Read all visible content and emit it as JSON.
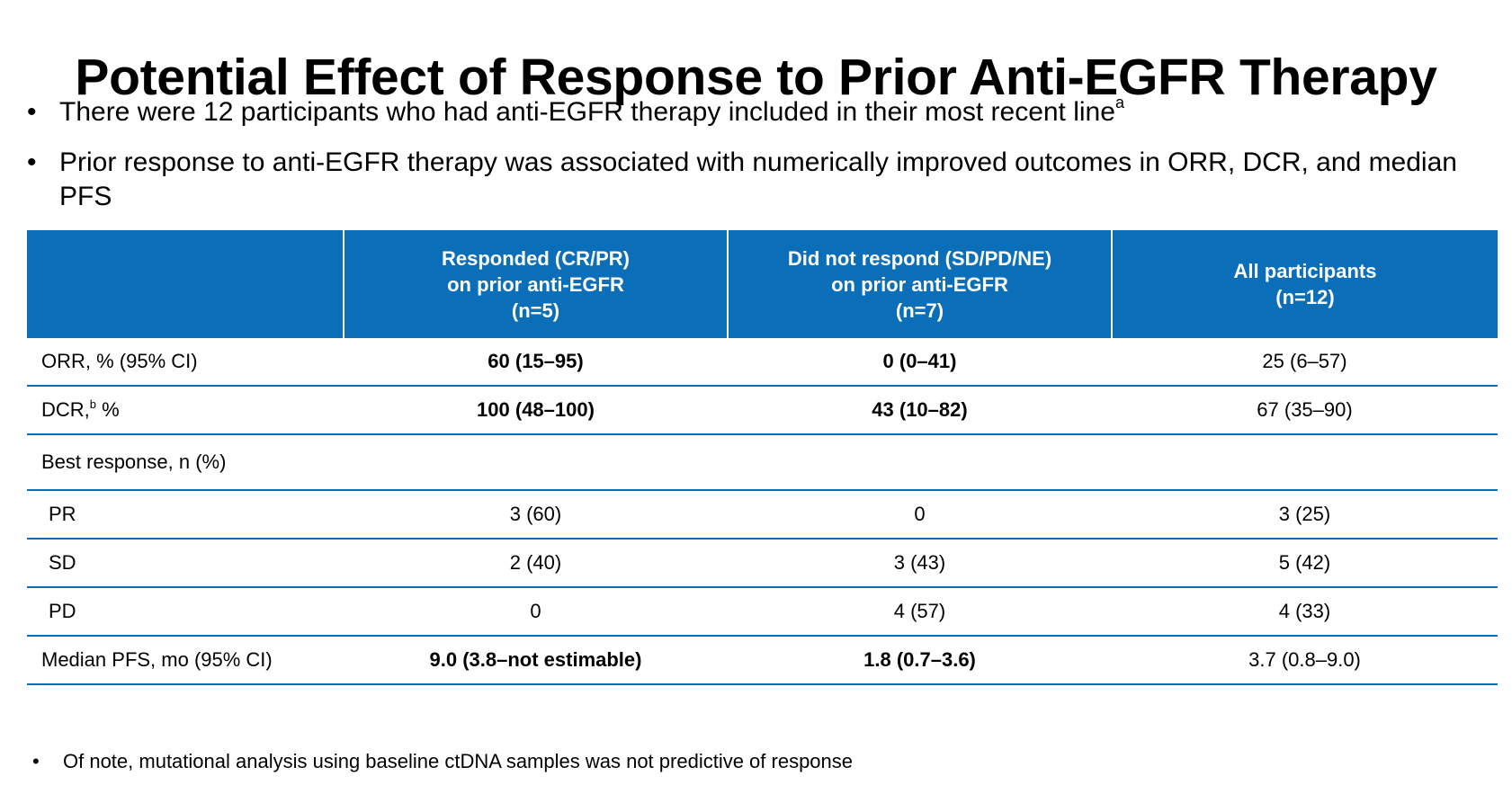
{
  "title": "Potential Effect of Response to Prior Anti-EGFR Therapy",
  "bullets": [
    {
      "text": "There were 12 participants who had anti-EGFR therapy included in their most recent line",
      "superscript": "a"
    },
    {
      "text": "Prior response to anti-EGFR therapy was associated with numerically improved outcomes in ORR, DCR, and median PFS"
    }
  ],
  "table": {
    "headers": [
      {
        "lines": [
          "",
          "",
          ""
        ]
      },
      {
        "lines": [
          "Responded (CR/PR)",
          "on prior anti-EGFR",
          "(n=5)"
        ]
      },
      {
        "lines": [
          "Did not respond (SD/PD/NE)",
          "on prior anti-EGFR",
          "(n=7)"
        ]
      },
      {
        "lines": [
          "All participants",
          "(n=12)",
          ""
        ]
      }
    ],
    "rows": [
      {
        "label": "ORR, % (95% CI)",
        "label_sup": "",
        "label_suffix": "",
        "cells": [
          "60 (15–95)",
          "0 (0–41)",
          "25 (6–57)"
        ],
        "bold": [
          true,
          true,
          false
        ]
      },
      {
        "label": "DCR,",
        "label_sup": "b",
        "label_suffix": " %",
        "cells": [
          "100 (48–100)",
          "43 (10–82)",
          "67 (35–90)"
        ],
        "bold": [
          true,
          true,
          false
        ]
      },
      {
        "label": "Best response, n (%)",
        "label_sup": "",
        "label_suffix": "",
        "cells": [
          "",
          "",
          ""
        ],
        "bold": [
          false,
          false,
          false
        ]
      },
      {
        "label": "PR",
        "label_sup": "",
        "label_suffix": "",
        "cells": [
          "3 (60)",
          "0",
          "3 (25)"
        ],
        "bold": [
          false,
          false,
          false
        ]
      },
      {
        "label": "SD",
        "label_sup": "",
        "label_suffix": "",
        "cells": [
          "2 (40)",
          "3 (43)",
          "5 (42)"
        ],
        "bold": [
          false,
          false,
          false
        ]
      },
      {
        "label": "PD",
        "label_sup": "",
        "label_suffix": "",
        "cells": [
          "0",
          "4 (57)",
          "4 (33)"
        ],
        "bold": [
          false,
          false,
          false
        ]
      },
      {
        "label": "Median PFS, mo (95% CI)",
        "label_sup": "",
        "label_suffix": "",
        "cells": [
          "9.0 (3.8–not estimable)",
          "1.8 (0.7–3.6)",
          "3.7 (0.8–9.0)"
        ],
        "bold": [
          true,
          true,
          false
        ]
      }
    ]
  },
  "footnote": "Of note, mutational analysis using baseline ctDNA samples was not predictive of response",
  "bullet_glyph": "•",
  "colors": {
    "header_bg": "#0a6fb8",
    "row_rule": "#0a6fb8",
    "text": "#000000"
  }
}
